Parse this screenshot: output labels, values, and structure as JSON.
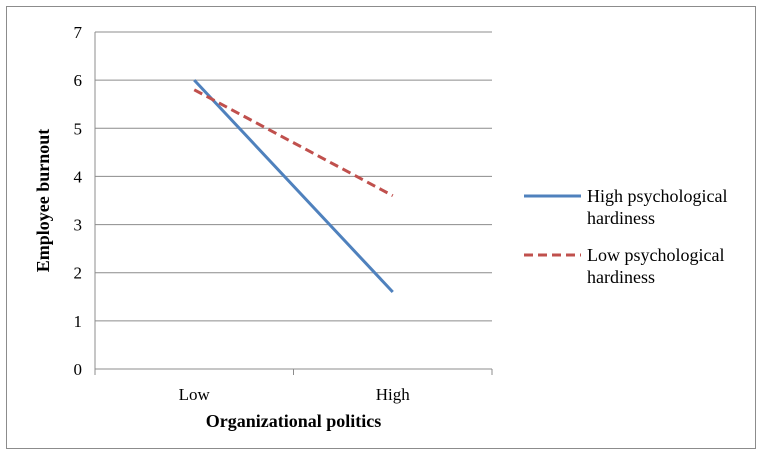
{
  "chart_data": {
    "type": "line",
    "title": "",
    "xlabel": "Organizational politics",
    "ylabel": "Employee burnout",
    "categories": [
      "Low",
      "High"
    ],
    "ylim": [
      0,
      7
    ],
    "yticks": [
      "0",
      "1",
      "2",
      "3",
      "4",
      "5",
      "6",
      "7"
    ],
    "grid": true,
    "legend_position": "right",
    "series": [
      {
        "name": "High psychological hardiness",
        "name_lines": [
          "High psychological",
          "hardiness"
        ],
        "values": [
          6.0,
          1.6
        ],
        "color": "#4f81bd",
        "style": "solid"
      },
      {
        "name": "Low psychological hardiness",
        "name_lines": [
          "Low psychological",
          "hardiness"
        ],
        "values": [
          5.8,
          3.6
        ],
        "color": "#c0504d",
        "style": "dashed"
      }
    ]
  }
}
